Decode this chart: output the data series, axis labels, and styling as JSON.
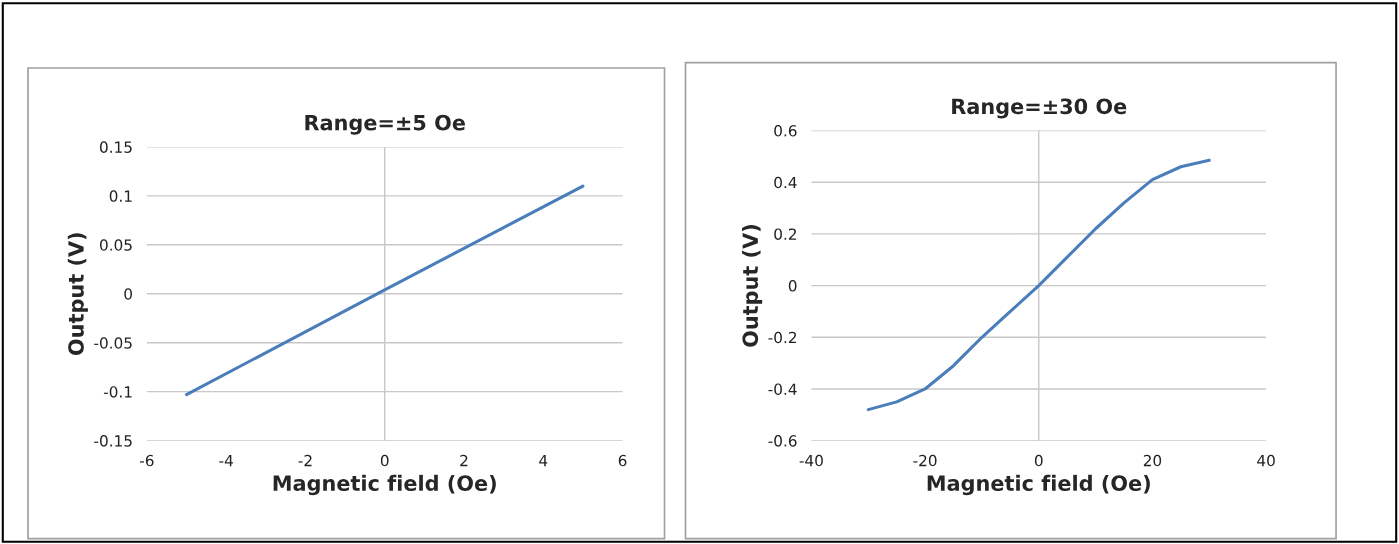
{
  "chart_data": [
    {
      "type": "line",
      "title": "Range=±5 Oe",
      "xlabel": "Magnetic field (Oe)",
      "ylabel": "Output (V)",
      "x": [
        -5,
        0,
        5
      ],
      "series": [
        {
          "color": "#4a7ebb",
          "values": [
            -0.103,
            0.004,
            0.11
          ]
        }
      ],
      "ref_lines": [
        {
          "axis": "x",
          "value": 0,
          "color": "#c8c8c8"
        }
      ],
      "xlim": [
        -6,
        6
      ],
      "xticks": [
        -6,
        -4,
        -2,
        0,
        2,
        4,
        6
      ],
      "ylim": [
        -0.15,
        0.15
      ],
      "yticks": [
        -0.15,
        -0.1,
        -0.05,
        0,
        0.05,
        0.1,
        0.15
      ],
      "grid": "y",
      "legend": false
    },
    {
      "type": "line",
      "title": "Range=±30 Oe",
      "xlabel": "Magnetic field (Oe)",
      "ylabel": "Output (V)",
      "x": [
        -30,
        -25,
        -20,
        -15,
        -10,
        -5,
        0,
        5,
        10,
        15,
        20,
        25,
        30
      ],
      "series": [
        {
          "color": "#4a7ebb",
          "values": [
            -0.48,
            -0.45,
            -0.4,
            -0.31,
            -0.2,
            -0.1,
            0.0,
            0.11,
            0.22,
            0.32,
            0.41,
            0.46,
            0.485
          ]
        }
      ],
      "ref_lines": [
        {
          "axis": "x",
          "value": 0,
          "color": "#c8c8c8"
        }
      ],
      "xlim": [
        -40,
        40
      ],
      "xticks": [
        -40,
        -20,
        0,
        20,
        40
      ],
      "ylim": [
        -0.6,
        0.6
      ],
      "yticks": [
        -0.6,
        -0.4,
        -0.2,
        0,
        0.2,
        0.4,
        0.6
      ],
      "grid": "y",
      "legend": false
    }
  ]
}
